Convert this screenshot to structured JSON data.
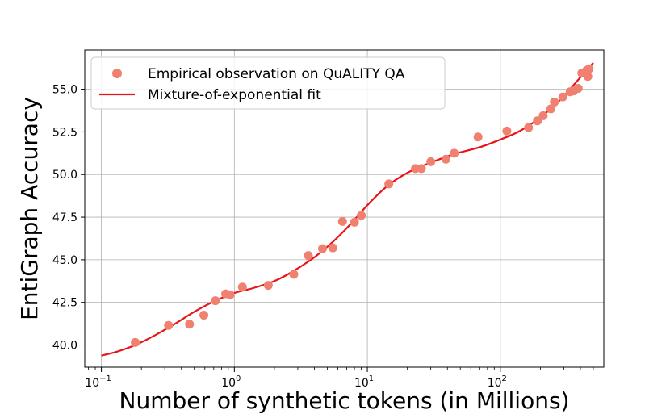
{
  "chart_data": {
    "type": "scatter",
    "xscale": "log",
    "xlabel": "Number of synthetic tokens (in Millions)",
    "ylabel": "EntiGraph Accuracy",
    "xlim": [
      0.075,
      600
    ],
    "ylim": [
      38.7,
      57.3
    ],
    "x_ticks": [
      0.1,
      1,
      10,
      100
    ],
    "x_tick_labels": [
      {
        "base": "10",
        "exp": "−1"
      },
      {
        "base": "10",
        "exp": "0"
      },
      {
        "base": "10",
        "exp": "1"
      },
      {
        "base": "10",
        "exp": "2"
      }
    ],
    "y_ticks": [
      40.0,
      42.5,
      45.0,
      47.5,
      50.0,
      52.5,
      55.0
    ],
    "y_tick_labels": [
      "40.0",
      "42.5",
      "45.0",
      "47.5",
      "50.0",
      "52.5",
      "55.0"
    ],
    "grid": true,
    "legend_position": "top-left",
    "series": [
      {
        "name": "Empirical observation on QuALITY QA",
        "kind": "scatter",
        "color": "#f08070",
        "points": [
          [
            0.18,
            40.15
          ],
          [
            0.32,
            41.15
          ],
          [
            0.46,
            41.22
          ],
          [
            0.59,
            41.75
          ],
          [
            0.72,
            42.6
          ],
          [
            0.86,
            43.0
          ],
          [
            0.93,
            42.95
          ],
          [
            1.15,
            43.4
          ],
          [
            1.8,
            43.5
          ],
          [
            2.8,
            44.15
          ],
          [
            3.6,
            45.25
          ],
          [
            4.6,
            45.65
          ],
          [
            5.5,
            45.7
          ],
          [
            6.5,
            47.25
          ],
          [
            8.0,
            47.2
          ],
          [
            9.0,
            47.6
          ],
          [
            14.5,
            49.45
          ],
          [
            23.0,
            50.35
          ],
          [
            25.5,
            50.35
          ],
          [
            30.0,
            50.75
          ],
          [
            39.0,
            50.9
          ],
          [
            45.0,
            51.25
          ],
          [
            68.0,
            52.2
          ],
          [
            112.0,
            52.55
          ],
          [
            163.0,
            52.75
          ],
          [
            190.0,
            53.15
          ],
          [
            210.0,
            53.45
          ],
          [
            240.0,
            53.85
          ],
          [
            255.0,
            54.25
          ],
          [
            295.0,
            54.55
          ],
          [
            335.0,
            54.85
          ],
          [
            355.0,
            54.9
          ],
          [
            385.0,
            55.05
          ],
          [
            410.0,
            55.95
          ],
          [
            445.0,
            56.1
          ],
          [
            465.0,
            56.2
          ],
          [
            455.0,
            55.75
          ]
        ]
      },
      {
        "name": "Mixture-of-exponential fit",
        "kind": "line",
        "color": "#e8141a",
        "points": [
          [
            0.1,
            39.38
          ],
          [
            0.13,
            39.6
          ],
          [
            0.18,
            40.0
          ],
          [
            0.25,
            40.55
          ],
          [
            0.35,
            41.2
          ],
          [
            0.5,
            41.95
          ],
          [
            0.7,
            42.55
          ],
          [
            1.0,
            43.05
          ],
          [
            1.4,
            43.35
          ],
          [
            2.0,
            43.75
          ],
          [
            2.8,
            44.35
          ],
          [
            4.0,
            45.15
          ],
          [
            5.5,
            46.05
          ],
          [
            7.5,
            47.1
          ],
          [
            10.0,
            48.2
          ],
          [
            14.0,
            49.3
          ],
          [
            20.0,
            50.1
          ],
          [
            30.0,
            50.7
          ],
          [
            45.0,
            51.2
          ],
          [
            70.0,
            51.6
          ],
          [
            100.0,
            52.05
          ],
          [
            140.0,
            52.55
          ],
          [
            200.0,
            53.35
          ],
          [
            280.0,
            54.35
          ],
          [
            380.0,
            55.5
          ],
          [
            500.0,
            56.55
          ]
        ]
      }
    ]
  }
}
